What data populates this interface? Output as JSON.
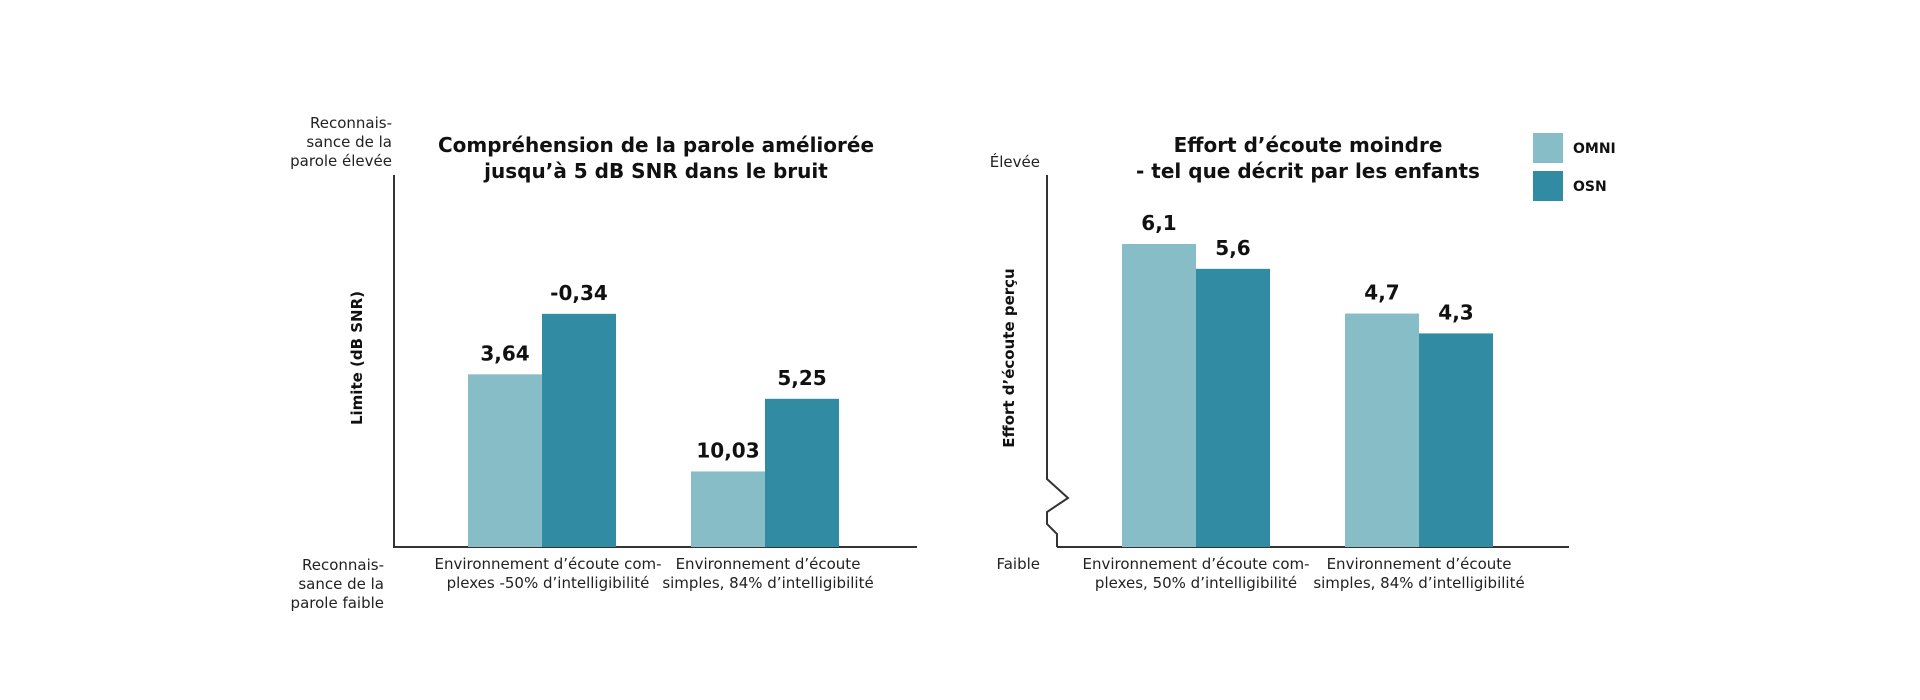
{
  "colors": {
    "omni": "#86bdc6",
    "osn": "#318ba3"
  },
  "legend": [
    {
      "name": "OMNI",
      "color": "#86bdc6"
    },
    {
      "name": "OSN",
      "color": "#318ba3"
    }
  ],
  "chart_data": [
    {
      "type": "bar",
      "title": [
        "Compréhension de la parole améliorée",
        "jusqu’à 5 dB SNR dans le bruit"
      ],
      "ylabel": "Limite (dB SNR)",
      "y_top_label": [
        "Reconnais-",
        "sance de la",
        "parole élevée"
      ],
      "y_bottom_label": [
        "Reconnais-",
        "sance de la",
        "parole faible"
      ],
      "y_inverted": true,
      "ylim": [
        15,
        -5
      ],
      "categories": [
        [
          "Environnement d’écoute com-",
          "plexes -50% d’intelligibilité"
        ],
        [
          "Environnement d’écoute",
          "simples, 84% d’intelligibilité"
        ]
      ],
      "value_labels": [
        [
          "3,64",
          "-0,34"
        ],
        [
          "10,03",
          "5,25"
        ]
      ],
      "series": [
        {
          "name": "OMNI",
          "values": [
            3.64,
            10.03
          ]
        },
        {
          "name": "OSN",
          "values": [
            -0.34,
            5.25
          ]
        }
      ]
    },
    {
      "type": "bar",
      "title": [
        "Effort d’écoute moindre",
        "- tel que décrit par les enfants"
      ],
      "ylabel": "Effort d’écoute perçu",
      "y_top_label": [
        "Élevée"
      ],
      "y_bottom_label": [
        "Faible"
      ],
      "y_inverted": false,
      "axis_break": true,
      "categories": [
        [
          "Environnement d’écoute com-",
          "plexes, 50% d’intelligibilité"
        ],
        [
          "Environnement d’écoute",
          "simples, 84% d’intelligibilité"
        ]
      ],
      "value_labels": [
        [
          "6,1",
          "5,6"
        ],
        [
          "4,7",
          "4,3"
        ]
      ],
      "series": [
        {
          "name": "OMNI",
          "values": [
            6.1,
            4.7
          ]
        },
        {
          "name": "OSN",
          "values": [
            5.6,
            4.3
          ]
        }
      ]
    }
  ]
}
